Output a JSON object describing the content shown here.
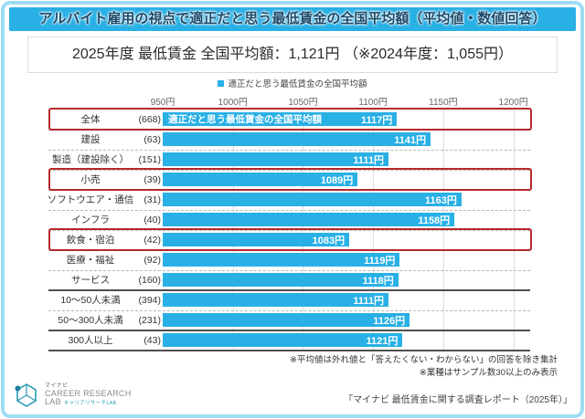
{
  "header": {
    "title": "アルバイト雇用の視点で適正だと思う最低賃金の全国平均額（平均値・数値回答）"
  },
  "summary": {
    "text": "2025年度 最低賃金 全国平均額：1,121円 （※2024年度：1,055円）"
  },
  "legend": {
    "label": "適正だと思う最低賃金の全国平均額",
    "marker_color": "#29b0e5"
  },
  "chart_data": {
    "type": "bar",
    "orientation": "horizontal",
    "title": "適正だと思う最低賃金の全国平均額",
    "unit": "円",
    "xlim": [
      950,
      1210
    ],
    "grid": true,
    "ticks": [
      950,
      1000,
      1050,
      1100,
      1150,
      1200
    ],
    "tick_labels": [
      "950円",
      "1000円",
      "1050円",
      "1100円",
      "1150円",
      "1200円"
    ],
    "categories": [
      "全体",
      "建設",
      "製造（建設除く）",
      "小売",
      "ソフトウエア・通信",
      "インフラ",
      "飲食・宿泊",
      "医療・福祉",
      "サービス",
      "10～50人未満",
      "50～300人未満",
      "300人以上"
    ],
    "counts": [
      668,
      63,
      151,
      39,
      31,
      40,
      42,
      92,
      160,
      394,
      231,
      43
    ],
    "count_labels": [
      "(668)",
      "(63)",
      "(151)",
      "(39)",
      "(31)",
      "(40)",
      "(42)",
      "(92)",
      "(160)",
      "(394)",
      "(231)",
      "(43)"
    ],
    "values": [
      1117,
      1141,
      1111,
      1089,
      1163,
      1158,
      1083,
      1119,
      1118,
      1111,
      1126,
      1121
    ],
    "value_labels": [
      "1117円",
      "1141円",
      "1111円",
      "1089円",
      "1163円",
      "1158円",
      "1083円",
      "1119円",
      "1118円",
      "1111円",
      "1126円",
      "1121円"
    ],
    "highlighted_indices": [
      0,
      3,
      6
    ],
    "solid_divider_after_indices": [
      8,
      10,
      11
    ],
    "bar_color": "#29b0e5",
    "highlight_box_color": "#b6292c",
    "bar_annotation": {
      "row_index": 0,
      "text": "適正だと思う最低賃金の全国平均額"
    }
  },
  "footnotes": [
    "※平均値は外れ値と「答えたくない・わからない」の回答を除き集計",
    "※業種はサンプル数30以上のみ表示"
  ],
  "source": {
    "text": "「マイナビ 最低賃金に関する調査レポート（2025年）」"
  },
  "logo": {
    "brand_small": "マイナビ",
    "line1": "CAREER RESEARCH",
    "line2": "LAB",
    "subtext": "キャリアリサーチLAB"
  }
}
